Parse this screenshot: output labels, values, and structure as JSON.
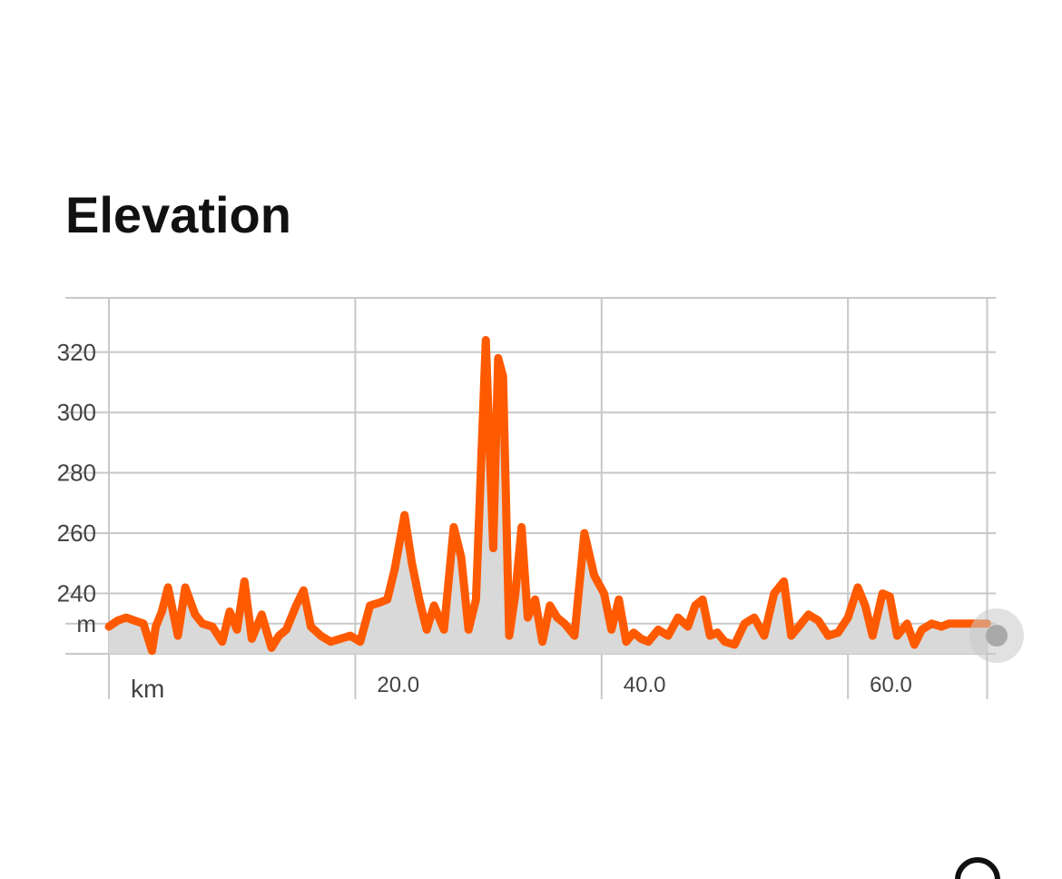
{
  "section": {
    "title": "Elevation"
  },
  "chart_data": {
    "type": "area",
    "title": "",
    "xlabel": "km",
    "ylabel": "m",
    "xlim": [
      0,
      72
    ],
    "ylim": [
      220,
      338
    ],
    "x_ticks": [
      0,
      20,
      40,
      60,
      71.3
    ],
    "x_tick_labels": [
      "",
      "20.0",
      "40.0",
      "60.0",
      ""
    ],
    "y_ticks": [
      230,
      240,
      260,
      280,
      300,
      320
    ],
    "y_tick_labels": [
      "m",
      "240",
      "260",
      "280",
      "300",
      "320"
    ],
    "grid": true,
    "colors": {
      "line": "#ff5a00",
      "fill": "#d9d9d9",
      "grid": "#c8c8c8"
    },
    "series": [
      {
        "x": [
          0,
          0.7,
          1.4,
          2.1,
          2.8,
          3.5,
          3.8,
          4.3,
          4.8,
          5.6,
          6.2,
          7.0,
          7.6,
          8.4,
          9.2,
          9.8,
          10.4,
          11.0,
          11.6,
          12.4,
          13.2,
          13.8,
          14.4,
          15.2,
          15.8,
          16.4,
          17.2,
          18.0,
          18.8,
          19.6,
          20.4,
          21.2,
          22.0,
          22.6,
          23.2,
          24.0,
          24.6,
          25.2,
          25.8,
          26.4,
          27.2,
          28.0,
          28.6,
          29.2,
          29.8,
          30.6,
          31.2,
          31.6,
          32.0,
          32.5,
          33.0,
          33.5,
          34.0,
          34.6,
          35.2,
          35.8,
          36.4,
          37.0,
          37.8,
          38.6,
          39.4,
          40.2,
          40.8,
          41.4,
          42.0,
          42.6,
          43.2,
          43.8,
          44.6,
          45.4,
          46.2,
          47.0,
          47.6,
          48.2,
          48.8,
          49.4,
          50.0,
          50.8,
          51.6,
          52.4,
          53.2,
          54.0,
          54.8,
          55.4,
          56.0,
          56.8,
          57.6,
          58.4,
          59.2,
          60.0,
          60.8,
          61.4,
          62.0,
          62.8,
          63.4,
          64.0,
          64.8,
          65.4,
          66.0,
          66.8,
          67.6,
          68.2,
          68.8,
          69.4,
          70.0,
          70.6,
          71.3
        ],
        "y": [
          229,
          231,
          232,
          231,
          230,
          221,
          229,
          234,
          242,
          226,
          242,
          233,
          230,
          229,
          224,
          234,
          228,
          244,
          225,
          233,
          222,
          226,
          228,
          236,
          241,
          229,
          226,
          224,
          225,
          226,
          224,
          236,
          237,
          238,
          248,
          266,
          250,
          238,
          228,
          236,
          228,
          262,
          252,
          228,
          238,
          324,
          255,
          318,
          312,
          226,
          240,
          262,
          232,
          238,
          224,
          236,
          232,
          230,
          226,
          260,
          246,
          240,
          228,
          238,
          224,
          227,
          225,
          224,
          228,
          226,
          232,
          229,
          236,
          238,
          226,
          227,
          224,
          223,
          230,
          232,
          226,
          240,
          244,
          226,
          229,
          233,
          231,
          226,
          227,
          232,
          242,
          236,
          226,
          240,
          239,
          226,
          230,
          223,
          228,
          230,
          229,
          230,
          230,
          230,
          230,
          230,
          230
        ]
      }
    ]
  }
}
